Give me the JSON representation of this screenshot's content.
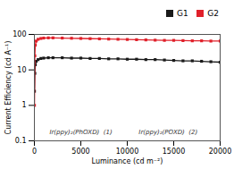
{
  "chart_data": {
    "type": "line",
    "xlabel": "Luminance (cd m⁻²)",
    "ylabel": "Current Efficiency (cd A⁻¹)",
    "x": [
      10,
      50,
      100,
      200,
      400,
      700,
      1000,
      1500,
      2000,
      3000,
      4000,
      5000,
      6000,
      7000,
      8000,
      9000,
      10000,
      11000,
      12000,
      13000,
      14000,
      15000,
      16000,
      17000,
      18000,
      19000,
      20000
    ],
    "series": [
      {
        "name": "G1",
        "color": "#1a1a1a",
        "marker": "square",
        "line_style": "solid",
        "values": [
          2.5,
          8,
          14,
          17.5,
          19.5,
          21,
          21.5,
          22,
          22,
          22,
          21.5,
          21.5,
          21,
          21,
          20.5,
          20.5,
          20,
          20,
          19.5,
          19.5,
          19,
          18.5,
          18,
          18,
          17.5,
          17,
          16.5
        ]
      },
      {
        "name": "G2",
        "color": "#e0202a",
        "marker": "square",
        "line_style": "solid",
        "values": [
          1.0,
          25,
          50,
          65,
          73,
          77,
          79,
          80,
          80,
          79,
          78,
          77,
          76,
          75,
          74,
          73,
          72,
          71,
          70,
          69,
          68,
          68,
          67,
          66,
          66,
          65,
          65
        ]
      }
    ],
    "xlim": [
      0,
      20000
    ],
    "ylim": [
      0.1,
      100
    ],
    "xticks": [
      0,
      5000,
      10000,
      15000,
      20000
    ],
    "yticks": [
      0.1,
      1,
      10,
      100
    ],
    "log": "y",
    "grid": false,
    "legend": "upper right",
    "annotations": [
      {
        "text": "Ir(ppy)₂(PhOXD)  (1)"
      },
      {
        "text": "Ir(ppy)₂(POXD)  (2)"
      }
    ]
  }
}
